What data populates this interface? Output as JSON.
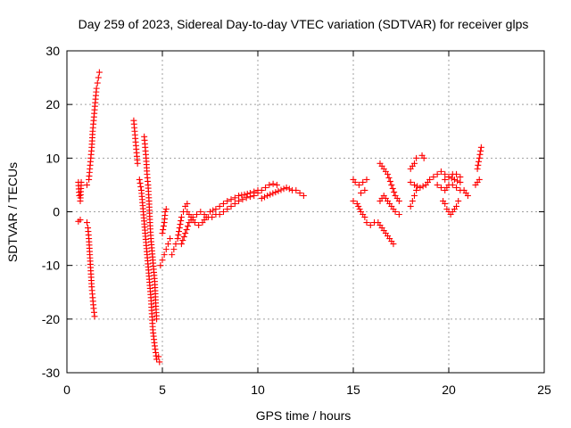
{
  "chart_data": {
    "type": "scatter",
    "title": "Day 259 of 2023, Sidereal Day-to-day VTEC variation (SDTVAR) for receiver glps",
    "xlabel": "GPS time / hours",
    "ylabel": "SDTVAR / TECUs",
    "xlim": [
      0,
      25
    ],
    "ylim": [
      -30,
      30
    ],
    "xticks": [
      0,
      5,
      10,
      15,
      20,
      25
    ],
    "yticks": [
      -30,
      -20,
      -10,
      0,
      10,
      20,
      30
    ],
    "grid": true,
    "marker": "+",
    "color": "#ff0000",
    "segments": [
      [
        [
          0.6,
          5.5
        ],
        [
          0.65,
          3
        ],
        [
          0.7,
          2
        ],
        [
          0.75,
          5.5
        ]
      ],
      [
        [
          0.6,
          -1.8
        ],
        [
          0.7,
          -1.5
        ]
      ],
      [
        [
          1.05,
          5
        ],
        [
          1.15,
          6
        ],
        [
          1.2,
          8
        ],
        [
          1.25,
          10
        ],
        [
          1.3,
          12
        ],
        [
          1.35,
          15
        ],
        [
          1.4,
          17
        ],
        [
          1.45,
          19
        ],
        [
          1.5,
          21
        ],
        [
          1.55,
          23
        ],
        [
          1.6,
          24
        ],
        [
          1.65,
          25
        ],
        [
          1.7,
          26
        ]
      ],
      [
        [
          1.05,
          -2
        ],
        [
          1.1,
          -3
        ],
        [
          1.15,
          -5
        ],
        [
          1.2,
          -8
        ],
        [
          1.25,
          -11
        ],
        [
          1.3,
          -14
        ],
        [
          1.35,
          -16
        ],
        [
          1.4,
          -18
        ],
        [
          1.45,
          -19.5
        ]
      ],
      [
        [
          3.5,
          17
        ],
        [
          3.55,
          15
        ],
        [
          3.6,
          13
        ],
        [
          3.65,
          11
        ],
        [
          3.7,
          9
        ]
      ],
      [
        [
          3.8,
          6
        ],
        [
          3.9,
          4
        ],
        [
          4.0,
          0
        ],
        [
          4.1,
          -4
        ],
        [
          4.2,
          -8
        ],
        [
          4.3,
          -12
        ],
        [
          4.4,
          -16
        ],
        [
          4.45,
          -19
        ],
        [
          4.5,
          -22
        ],
        [
          4.6,
          -25
        ],
        [
          4.7,
          -27.5
        ]
      ],
      [
        [
          4.05,
          14
        ],
        [
          4.1,
          12
        ],
        [
          4.15,
          10
        ],
        [
          4.2,
          7
        ],
        [
          4.25,
          5
        ],
        [
          4.3,
          2
        ],
        [
          4.35,
          -2
        ],
        [
          4.4,
          -5
        ],
        [
          4.5,
          -9
        ],
        [
          4.6,
          -13
        ],
        [
          4.65,
          -17
        ],
        [
          4.7,
          -20
        ]
      ],
      [
        [
          4.8,
          -27
        ],
        [
          4.85,
          -28
        ]
      ],
      [
        [
          4.9,
          -10
        ],
        [
          5.0,
          -9
        ],
        [
          5.1,
          -8
        ],
        [
          5.2,
          -7
        ],
        [
          5.3,
          -6
        ],
        [
          5.4,
          -5
        ]
      ],
      [
        [
          5.0,
          -4
        ],
        [
          5.1,
          -2
        ],
        [
          5.15,
          0
        ],
        [
          5.2,
          0.5
        ]
      ],
      [
        [
          5.5,
          -8
        ],
        [
          5.6,
          -7
        ],
        [
          5.7,
          -6
        ],
        [
          5.8,
          -5
        ],
        [
          5.9,
          -3
        ],
        [
          6.0,
          -1
        ],
        [
          6.1,
          0
        ],
        [
          6.2,
          1
        ],
        [
          6.3,
          1.5
        ]
      ],
      [
        [
          6.0,
          -6
        ],
        [
          6.2,
          -4
        ],
        [
          6.4,
          -2
        ],
        [
          6.6,
          -1
        ],
        [
          6.8,
          -0.5
        ],
        [
          7.0,
          0
        ],
        [
          7.2,
          -0.5
        ],
        [
          7.4,
          -1
        ],
        [
          7.6,
          -1
        ],
        [
          7.8,
          -0.5
        ]
      ],
      [
        [
          6.3,
          0
        ],
        [
          6.5,
          -1
        ],
        [
          6.7,
          -2
        ],
        [
          6.9,
          -2.5
        ],
        [
          7.1,
          -2
        ],
        [
          7.3,
          -1
        ]
      ],
      [
        [
          7.5,
          0
        ],
        [
          7.8,
          0.5
        ],
        [
          8.0,
          1
        ],
        [
          8.2,
          1.5
        ],
        [
          8.4,
          2
        ],
        [
          8.6,
          2.3
        ],
        [
          8.8,
          2.6
        ],
        [
          9.0,
          3
        ],
        [
          9.3,
          3.2
        ],
        [
          9.6,
          3.5
        ],
        [
          10.0,
          4
        ]
      ],
      [
        [
          8.0,
          -0.5
        ],
        [
          8.2,
          0
        ],
        [
          8.4,
          0.5
        ],
        [
          8.6,
          1
        ],
        [
          8.8,
          1.5
        ],
        [
          9.0,
          2
        ],
        [
          9.2,
          2.3
        ],
        [
          9.4,
          2.6
        ],
        [
          9.6,
          2.8
        ],
        [
          9.8,
          3
        ],
        [
          10.0,
          3.5
        ],
        [
          10.2,
          4
        ],
        [
          10.4,
          4.5
        ],
        [
          10.6,
          5
        ],
        [
          10.8,
          5.2
        ],
        [
          11.0,
          5
        ]
      ],
      [
        [
          10.2,
          2.5
        ],
        [
          10.5,
          3
        ],
        [
          11.5,
          4.5
        ],
        [
          11.8,
          4
        ],
        [
          12.0,
          4
        ],
        [
          12.2,
          3.5
        ],
        [
          12.4,
          3
        ]
      ],
      [
        [
          15.0,
          6
        ],
        [
          15.1,
          5.5
        ],
        [
          15.3,
          5
        ],
        [
          15.5,
          5.5
        ],
        [
          15.7,
          6
        ]
      ],
      [
        [
          15.0,
          2
        ],
        [
          15.2,
          1.5
        ],
        [
          15.4,
          0
        ],
        [
          15.6,
          -1
        ]
      ],
      [
        [
          15.4,
          3.5
        ],
        [
          15.6,
          4
        ]
      ],
      [
        [
          15.7,
          -2
        ],
        [
          15.9,
          -2.5
        ],
        [
          16.1,
          -2
        ],
        [
          16.3,
          -2
        ],
        [
          16.5,
          -3
        ],
        [
          16.7,
          -4
        ],
        [
          16.9,
          -5
        ],
        [
          17.1,
          -6
        ]
      ],
      [
        [
          16.4,
          2
        ],
        [
          16.6,
          3
        ],
        [
          16.8,
          2
        ],
        [
          17.0,
          1
        ],
        [
          17.2,
          0
        ],
        [
          17.4,
          -0.5
        ]
      ],
      [
        [
          16.4,
          9
        ],
        [
          16.6,
          8
        ],
        [
          16.8,
          7
        ],
        [
          17.0,
          5
        ],
        [
          17.2,
          3
        ],
        [
          17.4,
          2
        ]
      ],
      [
        [
          18.0,
          1
        ],
        [
          18.1,
          2
        ],
        [
          18.2,
          3
        ],
        [
          18.3,
          4
        ]
      ],
      [
        [
          18.0,
          8
        ],
        [
          18.2,
          9
        ],
        [
          18.3,
          10
        ]
      ],
      [
        [
          18.6,
          10.5
        ],
        [
          18.7,
          10
        ]
      ],
      [
        [
          18.0,
          5.5
        ],
        [
          18.2,
          5
        ],
        [
          18.5,
          4.5
        ],
        [
          18.8,
          5
        ],
        [
          19.0,
          6
        ],
        [
          19.2,
          6.5
        ],
        [
          19.4,
          7
        ],
        [
          19.6,
          7.5
        ],
        [
          19.8,
          7
        ],
        [
          20.0,
          6.5
        ],
        [
          20.3,
          6
        ],
        [
          20.6,
          5.5
        ]
      ],
      [
        [
          19.4,
          5
        ],
        [
          19.6,
          4.5
        ],
        [
          19.8,
          4
        ],
        [
          20.0,
          5
        ],
        [
          20.2,
          5
        ],
        [
          20.4,
          4.5
        ],
        [
          20.6,
          4
        ]
      ],
      [
        [
          19.8,
          6
        ],
        [
          20.0,
          6.5
        ],
        [
          20.2,
          7
        ],
        [
          20.4,
          7
        ],
        [
          20.6,
          6.5
        ]
      ],
      [
        [
          19.7,
          2
        ],
        [
          19.8,
          1.5
        ],
        [
          19.9,
          0.5
        ],
        [
          20.0,
          0
        ],
        [
          20.1,
          -0.5
        ],
        [
          20.2,
          0
        ],
        [
          20.4,
          1
        ],
        [
          20.5,
          2
        ]
      ],
      [
        [
          20.8,
          4
        ],
        [
          21.0,
          3
        ]
      ],
      [
        [
          21.4,
          5
        ],
        [
          21.5,
          5.5
        ],
        [
          21.6,
          6
        ]
      ],
      [
        [
          21.5,
          8
        ],
        [
          21.6,
          10
        ],
        [
          21.7,
          12
        ]
      ]
    ]
  }
}
